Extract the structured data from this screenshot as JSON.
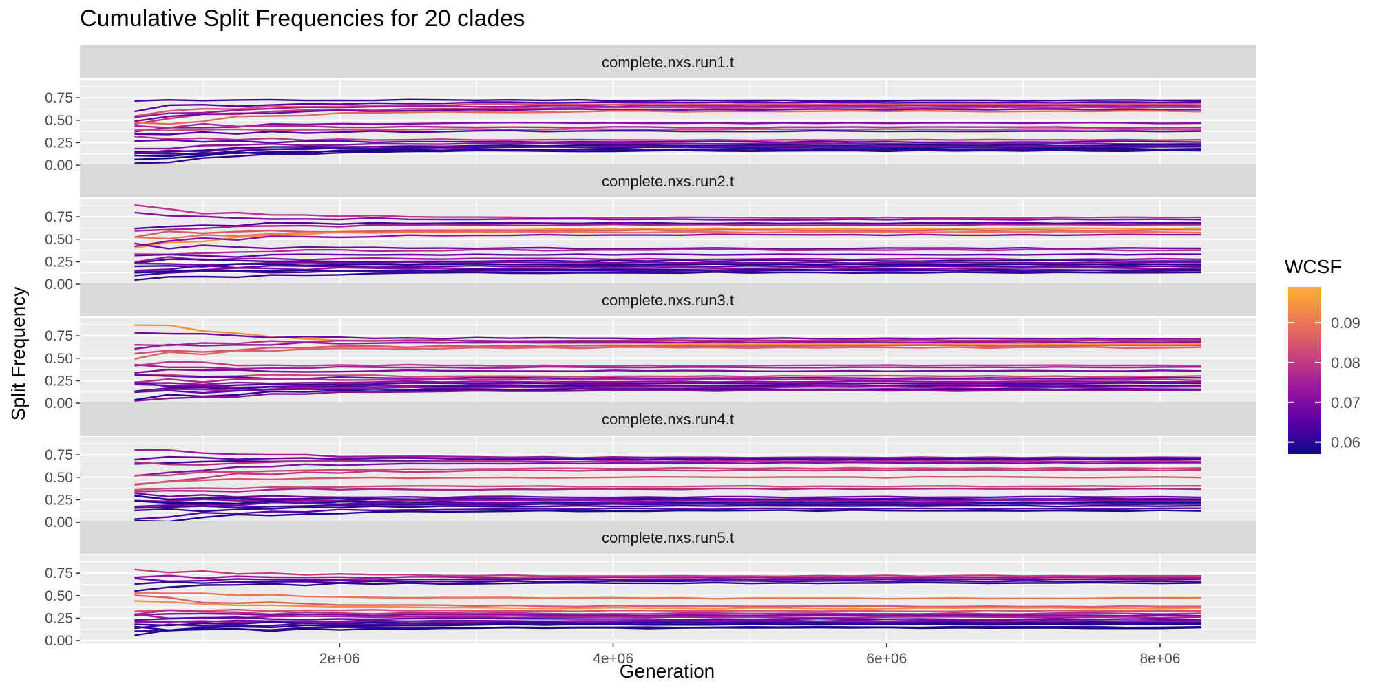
{
  "chart_data": {
    "type": "line",
    "title": "Cumulative Split Frequencies for 20 clades",
    "xlabel": "Generation",
    "ylabel": "Split Frequency",
    "xlim": [
      100000,
      8700000
    ],
    "ylim": [
      -0.03,
      0.95
    ],
    "x_ticks": [
      2000000,
      4000000,
      6000000,
      8000000
    ],
    "x_tick_labels": [
      "2e+06",
      "4e+06",
      "6e+06",
      "8e+06"
    ],
    "y_ticks": [
      0,
      0.25,
      0.5,
      0.75
    ],
    "y_tick_labels": [
      "0.00",
      "0.25",
      "0.50",
      "0.75"
    ],
    "grid": true,
    "facet_var": "run",
    "legend": {
      "title": "WCSF",
      "position": "right",
      "range": [
        0.057,
        0.099
      ],
      "ticks": [
        0.06,
        0.07,
        0.08,
        0.09
      ],
      "tick_labels": [
        "0.06",
        "0.07",
        "0.08",
        "0.09"
      ],
      "colors": [
        "#0d0887",
        "#5c01a6",
        "#9c179e",
        "#cc4778",
        "#ed7953",
        "#fdb42f"
      ]
    },
    "x": [
      500000,
      750000,
      1000000,
      1250000,
      1500000,
      1750000,
      2000000,
      2250000,
      2500000,
      2750000,
      3000000,
      3250000,
      3500000,
      3750000,
      4000000,
      4250000,
      4500000,
      4750000,
      5000000,
      5250000,
      5500000,
      5750000,
      6000000,
      6250000,
      6500000,
      6750000,
      7000000,
      7250000,
      7500000,
      7750000,
      8000000,
      8300000
    ],
    "facets": [
      {
        "name": "complete.nxs.run1.t",
        "series": [
          {
            "start": 0.75,
            "final": 0.72,
            "wcsf": 0.062
          },
          {
            "start": 0.62,
            "final": 0.7,
            "wcsf": 0.065
          },
          {
            "start": 0.58,
            "final": 0.68,
            "wcsf": 0.085
          },
          {
            "start": 0.55,
            "final": 0.66,
            "wcsf": 0.074
          },
          {
            "start": 0.48,
            "final": 0.64,
            "wcsf": 0.08
          },
          {
            "start": 0.52,
            "final": 0.62,
            "wcsf": 0.068
          },
          {
            "start": 0.44,
            "final": 0.6,
            "wcsf": 0.088
          },
          {
            "start": 0.4,
            "final": 0.47,
            "wcsf": 0.071
          },
          {
            "start": 0.45,
            "final": 0.42,
            "wcsf": 0.077
          },
          {
            "start": 0.36,
            "final": 0.4,
            "wcsf": 0.083
          },
          {
            "start": 0.33,
            "final": 0.38,
            "wcsf": 0.064
          },
          {
            "start": 0.3,
            "final": 0.28,
            "wcsf": 0.079
          },
          {
            "start": 0.27,
            "final": 0.26,
            "wcsf": 0.066
          },
          {
            "start": 0.2,
            "final": 0.24,
            "wcsf": 0.072
          },
          {
            "start": 0.15,
            "final": 0.22,
            "wcsf": 0.06
          },
          {
            "start": 0.12,
            "final": 0.21,
            "wcsf": 0.069
          },
          {
            "start": 0.1,
            "final": 0.2,
            "wcsf": 0.063
          },
          {
            "start": 0.05,
            "final": 0.18,
            "wcsf": 0.058
          },
          {
            "start": 0.0,
            "final": 0.17,
            "wcsf": 0.061
          },
          {
            "start": 0.08,
            "final": 0.16,
            "wcsf": 0.059
          }
        ]
      },
      {
        "name": "complete.nxs.run2.t",
        "series": [
          {
            "start": 0.85,
            "final": 0.74,
            "wcsf": 0.079
          },
          {
            "start": 0.78,
            "final": 0.72,
            "wcsf": 0.07
          },
          {
            "start": 0.65,
            "final": 0.68,
            "wcsf": 0.064
          },
          {
            "start": 0.6,
            "final": 0.66,
            "wcsf": 0.075
          },
          {
            "start": 0.38,
            "final": 0.62,
            "wcsf": 0.095
          },
          {
            "start": 0.55,
            "final": 0.6,
            "wcsf": 0.085
          },
          {
            "start": 0.5,
            "final": 0.58,
            "wcsf": 0.09
          },
          {
            "start": 0.45,
            "final": 0.55,
            "wcsf": 0.072
          },
          {
            "start": 0.42,
            "final": 0.4,
            "wcsf": 0.068
          },
          {
            "start": 0.35,
            "final": 0.38,
            "wcsf": 0.077
          },
          {
            "start": 0.3,
            "final": 0.33,
            "wcsf": 0.066
          },
          {
            "start": 0.28,
            "final": 0.28,
            "wcsf": 0.073
          },
          {
            "start": 0.25,
            "final": 0.26,
            "wcsf": 0.062
          },
          {
            "start": 0.22,
            "final": 0.24,
            "wcsf": 0.069
          },
          {
            "start": 0.2,
            "final": 0.22,
            "wcsf": 0.06
          },
          {
            "start": 0.18,
            "final": 0.2,
            "wcsf": 0.065
          },
          {
            "start": 0.15,
            "final": 0.18,
            "wcsf": 0.071
          },
          {
            "start": 0.12,
            "final": 0.16,
            "wcsf": 0.058
          },
          {
            "start": 0.1,
            "final": 0.15,
            "wcsf": 0.063
          },
          {
            "start": 0.05,
            "final": 0.13,
            "wcsf": 0.061
          }
        ]
      },
      {
        "name": "complete.nxs.run3.t",
        "series": [
          {
            "start": 0.9,
            "final": 0.66,
            "wcsf": 0.094
          },
          {
            "start": 0.78,
            "final": 0.72,
            "wcsf": 0.068
          },
          {
            "start": 0.66,
            "final": 0.7,
            "wcsf": 0.078
          },
          {
            "start": 0.62,
            "final": 0.68,
            "wcsf": 0.073
          },
          {
            "start": 0.55,
            "final": 0.64,
            "wcsf": 0.084
          },
          {
            "start": 0.52,
            "final": 0.62,
            "wcsf": 0.087
          },
          {
            "start": 0.45,
            "final": 0.42,
            "wcsf": 0.08
          },
          {
            "start": 0.4,
            "final": 0.4,
            "wcsf": 0.075
          },
          {
            "start": 0.36,
            "final": 0.36,
            "wcsf": 0.07
          },
          {
            "start": 0.32,
            "final": 0.3,
            "wcsf": 0.082
          },
          {
            "start": 0.28,
            "final": 0.28,
            "wcsf": 0.066
          },
          {
            "start": 0.25,
            "final": 0.26,
            "wcsf": 0.077
          },
          {
            "start": 0.22,
            "final": 0.24,
            "wcsf": 0.072
          },
          {
            "start": 0.2,
            "final": 0.22,
            "wcsf": 0.064
          },
          {
            "start": 0.18,
            "final": 0.2,
            "wcsf": 0.069
          },
          {
            "start": 0.15,
            "final": 0.19,
            "wcsf": 0.062
          },
          {
            "start": 0.12,
            "final": 0.18,
            "wcsf": 0.074
          },
          {
            "start": 0.1,
            "final": 0.16,
            "wcsf": 0.067
          },
          {
            "start": 0.05,
            "final": 0.15,
            "wcsf": 0.06
          },
          {
            "start": 0.0,
            "final": 0.14,
            "wcsf": 0.071
          }
        ]
      },
      {
        "name": "complete.nxs.run4.t",
        "series": [
          {
            "start": 0.8,
            "final": 0.72,
            "wcsf": 0.074
          },
          {
            "start": 0.7,
            "final": 0.71,
            "wcsf": 0.066
          },
          {
            "start": 0.66,
            "final": 0.7,
            "wcsf": 0.062
          },
          {
            "start": 0.64,
            "final": 0.68,
            "wcsf": 0.078
          },
          {
            "start": 0.55,
            "final": 0.66,
            "wcsf": 0.07
          },
          {
            "start": 0.5,
            "final": 0.6,
            "wcsf": 0.082
          },
          {
            "start": 0.45,
            "final": 0.58,
            "wcsf": 0.08
          },
          {
            "start": 0.42,
            "final": 0.5,
            "wcsf": 0.085
          },
          {
            "start": 0.38,
            "final": 0.4,
            "wcsf": 0.083
          },
          {
            "start": 0.34,
            "final": 0.37,
            "wcsf": 0.076
          },
          {
            "start": 0.3,
            "final": 0.28,
            "wcsf": 0.068
          },
          {
            "start": 0.28,
            "final": 0.26,
            "wcsf": 0.064
          },
          {
            "start": 0.26,
            "final": 0.25,
            "wcsf": 0.06
          },
          {
            "start": 0.24,
            "final": 0.24,
            "wcsf": 0.072
          },
          {
            "start": 0.22,
            "final": 0.22,
            "wcsf": 0.058
          },
          {
            "start": 0.2,
            "final": 0.21,
            "wcsf": 0.067
          },
          {
            "start": 0.15,
            "final": 0.2,
            "wcsf": 0.063
          },
          {
            "start": 0.1,
            "final": 0.18,
            "wcsf": 0.061
          },
          {
            "start": 0.05,
            "final": 0.15,
            "wcsf": 0.065
          },
          {
            "start": 0.0,
            "final": 0.13,
            "wcsf": 0.059
          }
        ]
      },
      {
        "name": "complete.nxs.run5.t",
        "series": [
          {
            "start": 0.8,
            "final": 0.72,
            "wcsf": 0.08
          },
          {
            "start": 0.72,
            "final": 0.7,
            "wcsf": 0.073
          },
          {
            "start": 0.66,
            "final": 0.68,
            "wcsf": 0.066
          },
          {
            "start": 0.62,
            "final": 0.66,
            "wcsf": 0.062
          },
          {
            "start": 0.58,
            "final": 0.64,
            "wcsf": 0.06
          },
          {
            "start": 0.55,
            "final": 0.47,
            "wcsf": 0.09
          },
          {
            "start": 0.48,
            "final": 0.38,
            "wcsf": 0.086
          },
          {
            "start": 0.42,
            "final": 0.36,
            "wcsf": 0.094
          },
          {
            "start": 0.36,
            "final": 0.33,
            "wcsf": 0.084
          },
          {
            "start": 0.32,
            "final": 0.3,
            "wcsf": 0.078
          },
          {
            "start": 0.3,
            "final": 0.28,
            "wcsf": 0.07
          },
          {
            "start": 0.27,
            "final": 0.26,
            "wcsf": 0.075
          },
          {
            "start": 0.25,
            "final": 0.24,
            "wcsf": 0.065
          },
          {
            "start": 0.22,
            "final": 0.22,
            "wcsf": 0.068
          },
          {
            "start": 0.2,
            "final": 0.21,
            "wcsf": 0.072
          },
          {
            "start": 0.18,
            "final": 0.2,
            "wcsf": 0.061
          },
          {
            "start": 0.15,
            "final": 0.19,
            "wcsf": 0.064
          },
          {
            "start": 0.12,
            "final": 0.18,
            "wcsf": 0.058
          },
          {
            "start": 0.1,
            "final": 0.15,
            "wcsf": 0.063
          },
          {
            "start": 0.08,
            "final": 0.14,
            "wcsf": 0.059
          }
        ]
      }
    ]
  }
}
